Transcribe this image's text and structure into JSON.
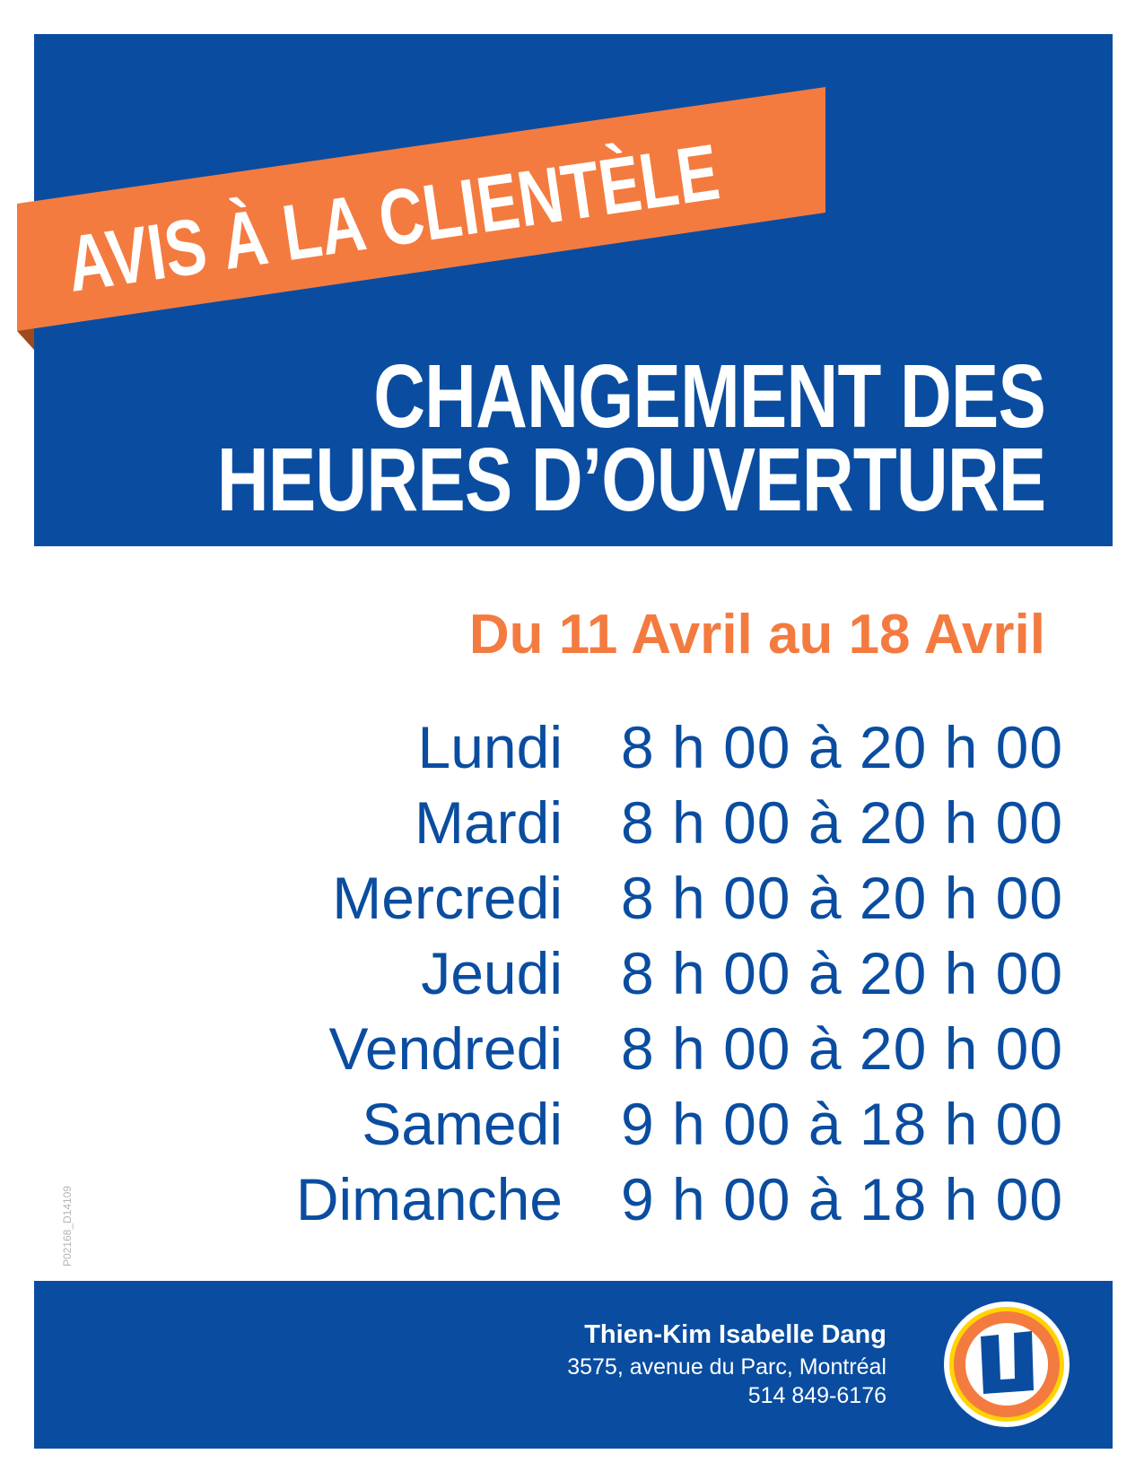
{
  "banner": {
    "ribbon": "AVIS À LA CLIENTÈLE",
    "title_line1": "CHANGEMENT DES",
    "title_line2": "HEURES D’OUVERTURE"
  },
  "period": "Du 11 Avril au 18 Avril",
  "schedule": [
    {
      "day": "Lundi",
      "hours": "8 h 00 à 20 h 00"
    },
    {
      "day": "Mardi",
      "hours": "8 h 00 à 20 h 00"
    },
    {
      "day": "Mercredi",
      "hours": "8 h 00 à 20 h 00"
    },
    {
      "day": "Jeudi",
      "hours": "8 h 00 à 20 h 00"
    },
    {
      "day": "Vendredi",
      "hours": "8 h 00 à 20 h 00"
    },
    {
      "day": "Samedi",
      "hours": "9 h 00 à 18 h 00"
    },
    {
      "day": "Dimanche",
      "hours": "9 h 00 à 18 h 00"
    }
  ],
  "code": "P02168_D14109",
  "footer": {
    "name": "Thien-Kim Isabelle Dang",
    "address": "3575, avenue du Parc, Montréal",
    "phone": "514 849-6176",
    "logo_letter": "U"
  },
  "colors": {
    "blue": "#0a4da0",
    "orange": "#f47b40",
    "yellow": "#ffd400"
  }
}
